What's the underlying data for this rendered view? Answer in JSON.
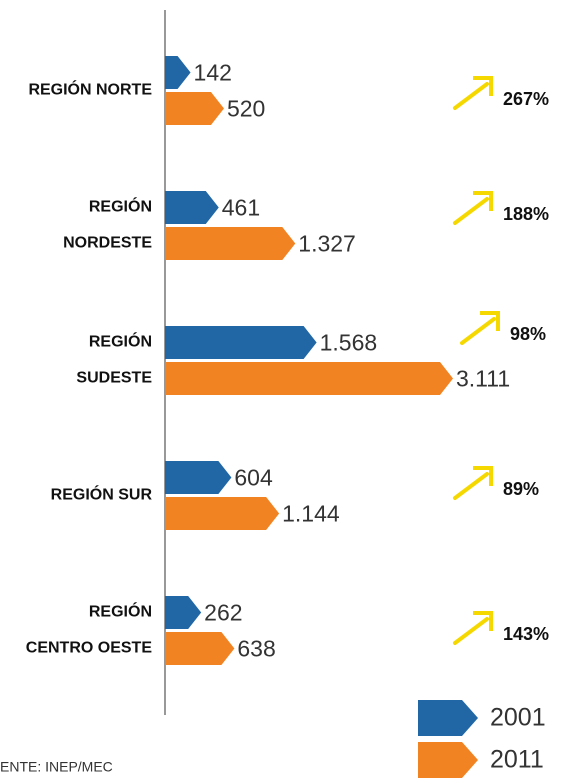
{
  "chart_data": {
    "type": "bar",
    "categories": [
      [
        "REGIÓN NORTE"
      ],
      [
        "REGIÓN",
        "NORDESTE"
      ],
      [
        "REGIÓN",
        "SUDESTE"
      ],
      [
        "REGIÓN SUR"
      ],
      [
        "REGIÓN",
        "CENTRO OESTE"
      ]
    ],
    "series": [
      {
        "name": "2001",
        "color": "#2166a5",
        "values": [
          142,
          461,
          1568,
          604,
          262
        ],
        "value_labels": [
          "142",
          "461",
          "1.568",
          "604",
          "262"
        ]
      },
      {
        "name": "2011",
        "color": "#f28322",
        "values": [
          520,
          1327,
          3111,
          1144,
          638
        ],
        "value_labels": [
          "520",
          "1.327",
          "3.111",
          "1.144",
          "638"
        ]
      }
    ],
    "growth_labels": [
      "267%",
      "188%",
      "98%",
      "89%",
      "143%"
    ],
    "arrow_color": "#f5d800",
    "source": "ENTE: INEP/MEC"
  }
}
